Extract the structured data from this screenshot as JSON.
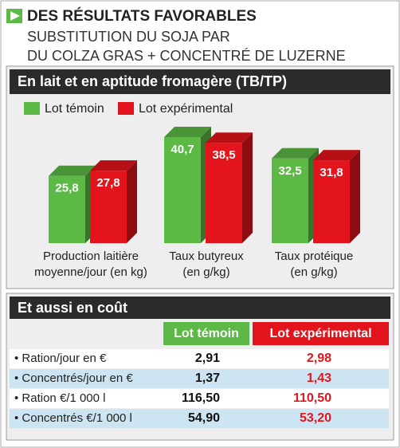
{
  "header": {
    "title": "DES RÉSULTATS FAVORABLES",
    "subtitle": [
      "SUBSTITUTION DU SOJA PAR",
      "DU COLZA GRAS + CONCENTRÉ DE LUZERNE"
    ]
  },
  "chart_data": {
    "type": "bar",
    "title": "En lait et en aptitude fromagère (TB/TP)",
    "categories": [
      [
        "Production laitière",
        "moyenne/jour (en kg)"
      ],
      [
        "Taux butyreux",
        "(en g/kg)"
      ],
      [
        "Taux protéique",
        "(en g/kg)"
      ]
    ],
    "series": [
      {
        "name": "Lot témoin",
        "color": "#5cb946",
        "values": [
          25.8,
          40.7,
          32.5
        ],
        "value_labels": [
          "25,8",
          "40,7",
          "32,5"
        ]
      },
      {
        "name": "Lot expérimental",
        "color": "#e3141b",
        "values": [
          27.8,
          38.5,
          31.8
        ],
        "value_labels": [
          "27,8",
          "38,5",
          "31,8"
        ]
      }
    ]
  },
  "table": {
    "title": "Et aussi en coût",
    "columns": [
      "Lot témoin",
      "Lot expérimental"
    ],
    "rows": [
      [
        "• Ration/jour en €",
        "2,91",
        "2,98"
      ],
      [
        "• Concentrés/jour en €",
        "1,37",
        "1,43"
      ],
      [
        "• Ration €/1 000 l",
        "116,50",
        "110,50"
      ],
      [
        "• Concentrés €/1 000 l",
        "54,90",
        "53,20"
      ]
    ]
  }
}
